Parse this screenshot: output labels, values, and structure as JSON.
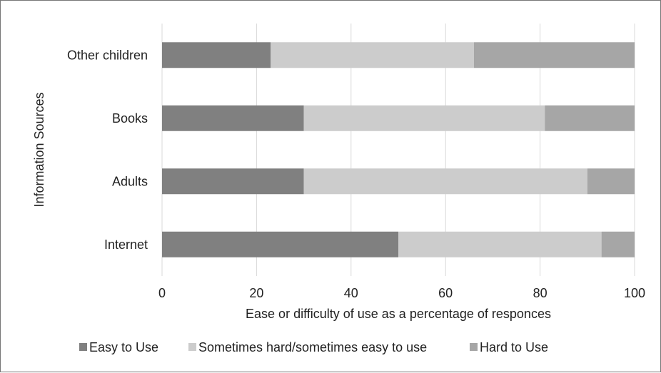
{
  "chart_data": {
    "type": "bar",
    "orientation": "horizontal",
    "stacked": true,
    "categories": [
      "Other children",
      "Books",
      "Adults",
      "Internet"
    ],
    "series": [
      {
        "name": "Easy to Use",
        "values": [
          23,
          30,
          30,
          50
        ],
        "color": "#808080"
      },
      {
        "name": "Sometimes hard/sometimes easy to use",
        "values": [
          43,
          51,
          60,
          43
        ],
        "color": "#cccccc"
      },
      {
        "name": "Hard to Use",
        "values": [
          34,
          19,
          10,
          7
        ],
        "color": "#a6a6a6"
      }
    ],
    "xlabel": "Ease or difficulty of use as a percentage of responces",
    "ylabel": "Information Sources",
    "xlim": [
      0,
      100
    ],
    "xticks": [
      "0",
      "20",
      "40",
      "60",
      "80",
      "100"
    ],
    "grid": "vertical",
    "legend_position": "bottom"
  }
}
